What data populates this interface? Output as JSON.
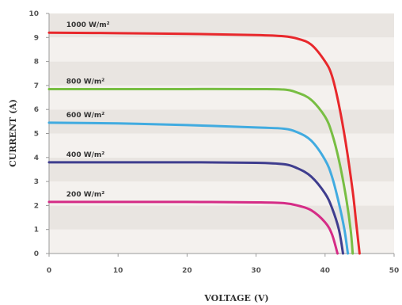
{
  "chart_data": {
    "type": "line",
    "xlabel": "VOLTAGE (V)",
    "ylabel": "CURRENT (A)",
    "xlim": [
      0,
      50
    ],
    "ylim": [
      0,
      10
    ],
    "xticks": [
      "0",
      "10",
      "20",
      "30",
      "40",
      "50"
    ],
    "yticks": [
      "0",
      "1",
      "2",
      "3",
      "4",
      "5",
      "6",
      "7",
      "8",
      "9",
      "10"
    ],
    "grid": "alternating horizontal bands",
    "series": [
      {
        "name": "1000 W/m²",
        "color": "#e8282c",
        "points": [
          [
            0,
            9.2
          ],
          [
            10,
            9.18
          ],
          [
            20,
            9.15
          ],
          [
            30,
            9.1
          ],
          [
            34,
            9.05
          ],
          [
            36,
            8.95
          ],
          [
            38,
            8.7
          ],
          [
            40,
            8.0
          ],
          [
            41,
            7.4
          ],
          [
            42,
            6.2
          ],
          [
            43,
            4.6
          ],
          [
            44,
            2.6
          ],
          [
            44.5,
            1.3
          ],
          [
            45,
            0
          ]
        ]
      },
      {
        "name": "800 W/m²",
        "color": "#78be43",
        "points": [
          [
            0,
            6.85
          ],
          [
            10,
            6.85
          ],
          [
            20,
            6.85
          ],
          [
            30,
            6.85
          ],
          [
            34,
            6.83
          ],
          [
            36,
            6.7
          ],
          [
            38,
            6.4
          ],
          [
            40,
            5.7
          ],
          [
            41,
            5.0
          ],
          [
            42,
            3.9
          ],
          [
            43,
            2.4
          ],
          [
            43.7,
            1.0
          ],
          [
            44,
            0
          ]
        ]
      },
      {
        "name": "600 W/m²",
        "color": "#41abe0",
        "points": [
          [
            0,
            5.45
          ],
          [
            10,
            5.42
          ],
          [
            20,
            5.35
          ],
          [
            30,
            5.25
          ],
          [
            34,
            5.2
          ],
          [
            36,
            5.05
          ],
          [
            38,
            4.7
          ],
          [
            40,
            3.9
          ],
          [
            41,
            3.2
          ],
          [
            42,
            2.1
          ],
          [
            42.8,
            1.0
          ],
          [
            43.3,
            0
          ]
        ]
      },
      {
        "name": "400 W/m²",
        "color": "#3f3d8e",
        "points": [
          [
            0,
            3.8
          ],
          [
            10,
            3.8
          ],
          [
            20,
            3.8
          ],
          [
            30,
            3.78
          ],
          [
            34,
            3.72
          ],
          [
            36,
            3.55
          ],
          [
            38,
            3.2
          ],
          [
            40,
            2.5
          ],
          [
            41,
            1.9
          ],
          [
            42,
            1.0
          ],
          [
            42.6,
            0
          ]
        ]
      },
      {
        "name": "200 W/m²",
        "color": "#d52c86",
        "points": [
          [
            0,
            2.15
          ],
          [
            10,
            2.15
          ],
          [
            20,
            2.15
          ],
          [
            30,
            2.13
          ],
          [
            34,
            2.1
          ],
          [
            36,
            2.0
          ],
          [
            38,
            1.8
          ],
          [
            40,
            1.3
          ],
          [
            41,
            0.8
          ],
          [
            41.8,
            0
          ]
        ]
      }
    ]
  }
}
